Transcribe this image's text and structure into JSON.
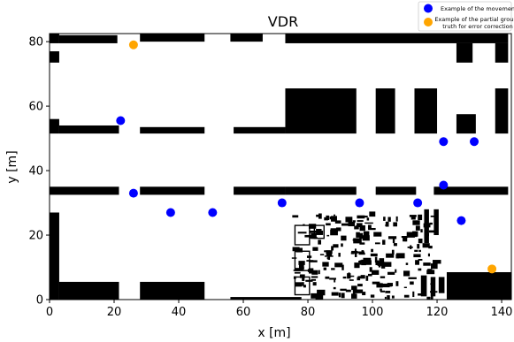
{
  "chart_data": {
    "type": "scatter",
    "title": "VDR",
    "xlabel": "x [m]",
    "ylabel": "y [m]",
    "xlim": [
      0,
      143
    ],
    "ylim": [
      0,
      82.5
    ],
    "xticks": [
      0,
      20,
      40,
      60,
      80,
      100,
      120,
      140
    ],
    "yticks": [
      0,
      20,
      40,
      60,
      80
    ],
    "grid": false,
    "legend_position": "top-right",
    "series": [
      {
        "name": "Example of the movement",
        "color": "#0000ff",
        "points": [
          {
            "x": 22,
            "y": 55.5
          },
          {
            "x": 26,
            "y": 33
          },
          {
            "x": 37.5,
            "y": 27
          },
          {
            "x": 50.5,
            "y": 27
          },
          {
            "x": 72,
            "y": 30
          },
          {
            "x": 96,
            "y": 30
          },
          {
            "x": 114,
            "y": 30
          },
          {
            "x": 122,
            "y": 49
          },
          {
            "x": 131.5,
            "y": 49
          },
          {
            "x": 122,
            "y": 35.5
          },
          {
            "x": 127.5,
            "y": 24.5
          }
        ]
      },
      {
        "name": "Example of the partial ground truth for error correction",
        "legend_lines": [
          "Example of the partial ground",
          "truth for error correction"
        ],
        "color": "#ffa500",
        "points": [
          {
            "x": 26,
            "y": 79
          },
          {
            "x": 137,
            "y": 9.5
          }
        ]
      }
    ],
    "map_color": "#000000",
    "map_obstacles": [
      [
        0,
        79.5,
        3,
        3
      ],
      [
        3,
        79.5,
        18,
        2.5
      ],
      [
        28,
        80,
        20,
        2.5
      ],
      [
        56,
        80,
        10,
        2.5
      ],
      [
        73,
        79.5,
        69,
        3
      ],
      [
        0,
        73.5,
        3,
        3.5
      ],
      [
        126,
        73.5,
        5,
        6
      ],
      [
        138,
        73.5,
        4,
        6
      ],
      [
        0,
        51.5,
        3,
        4.5
      ],
      [
        3,
        51.5,
        18.5,
        2.5
      ],
      [
        28,
        51.5,
        20,
        2
      ],
      [
        57,
        51.5,
        16,
        2
      ],
      [
        73,
        51.5,
        22,
        14
      ],
      [
        101,
        51.5,
        6,
        14
      ],
      [
        113,
        51.5,
        7,
        14
      ],
      [
        126,
        51.5,
        6,
        6
      ],
      [
        138,
        51.5,
        4,
        14
      ],
      [
        0,
        32.5,
        21.5,
        2.5
      ],
      [
        28,
        32.5,
        20,
        2.5
      ],
      [
        57,
        32.5,
        16,
        2.5
      ],
      [
        73,
        32.5,
        22,
        2.5
      ],
      [
        101,
        32.5,
        12.5,
        2.5
      ],
      [
        119,
        32.5,
        23,
        2.5
      ],
      [
        0,
        0,
        3,
        27
      ],
      [
        3,
        0,
        18.5,
        5.5
      ],
      [
        28,
        0,
        20,
        5.5
      ],
      [
        56,
        0,
        22,
        0.8
      ],
      [
        123,
        0,
        20,
        8.5
      ],
      [
        116,
        17.5,
        1.5,
        10.5
      ],
      [
        119,
        20,
        1.5,
        8
      ],
      [
        115,
        1,
        1.8,
        6.5
      ],
      [
        118,
        1,
        1.5,
        6
      ],
      [
        120.5,
        2,
        1.8,
        5
      ]
    ],
    "clutter_region": [
      75,
      0,
      46,
      27
    ]
  }
}
